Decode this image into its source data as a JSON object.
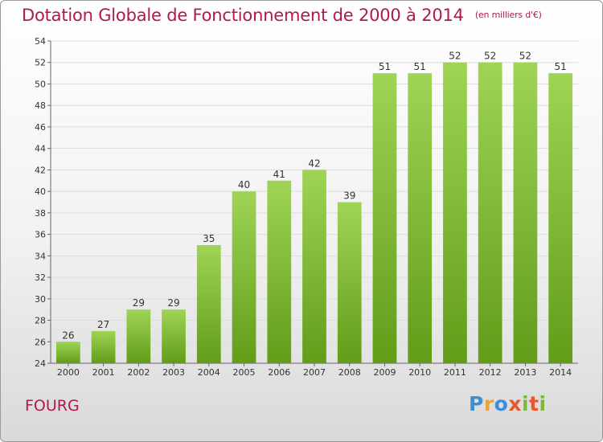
{
  "title": "Dotation Globale de Fonctionnement de 2000 à 2014",
  "unit_note": "(en milliers d'€)",
  "commune": "FOURG",
  "logo": {
    "letters": [
      "P",
      "r",
      "o",
      "x",
      "i",
      "t",
      "i"
    ],
    "colors": [
      "#3b8fd6",
      "#e9a23b",
      "#3b8fd6",
      "#e8572d",
      "#7cb83a",
      "#e8572d",
      "#7cb83a"
    ]
  },
  "colors": {
    "title": "#b0184f",
    "bar_top": "#9fd455",
    "bar_bottom": "#629c19",
    "grid": "#dddddd"
  },
  "chart_data": {
    "type": "bar",
    "title": "Dotation Globale de Fonctionnement de 2000 à 2014",
    "subtitle": "(en milliers d'€)",
    "xlabel": "",
    "ylabel": "",
    "categories": [
      "2000",
      "2001",
      "2002",
      "2003",
      "2004",
      "2005",
      "2006",
      "2007",
      "2008",
      "2009",
      "2010",
      "2011",
      "2012",
      "2013",
      "2014"
    ],
    "values": [
      26,
      27,
      29,
      29,
      35,
      40,
      41,
      42,
      39,
      51,
      51,
      52,
      52,
      52,
      51
    ],
    "ylim": [
      24,
      54
    ],
    "yticks": [
      24,
      26,
      28,
      30,
      32,
      34,
      36,
      38,
      40,
      42,
      44,
      46,
      48,
      50,
      52,
      54
    ],
    "grid": true,
    "legend": "none"
  }
}
